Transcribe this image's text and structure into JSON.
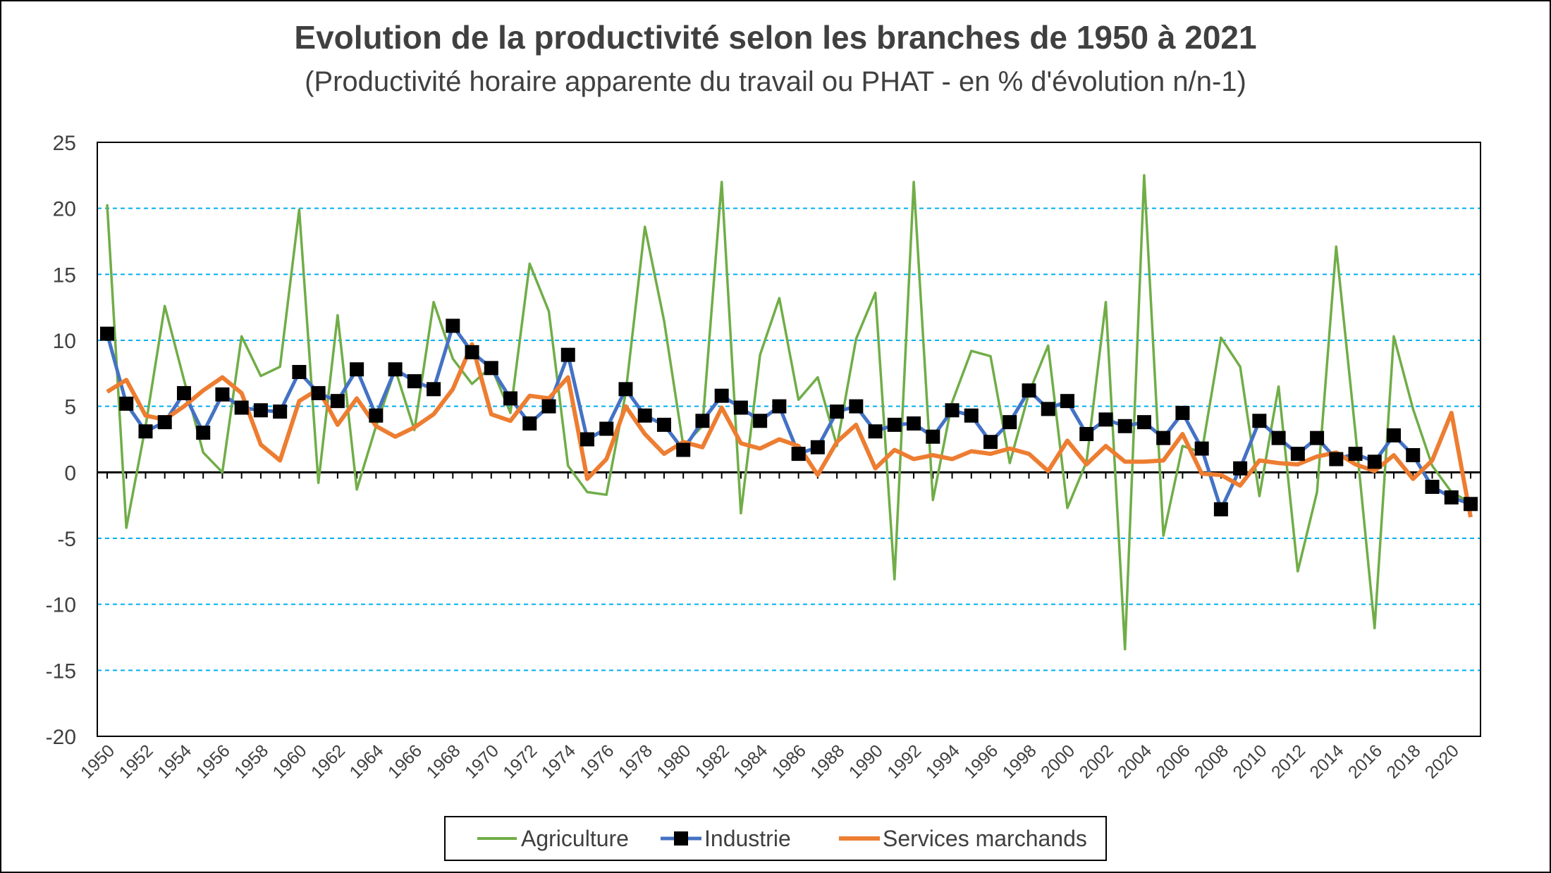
{
  "chart_data": {
    "type": "line",
    "title": "Evolution de la productivité selon les branches de 1950 à 2021",
    "subtitle": "(Productivité horaire apparente du travail ou PHAT - en % d'évolution n/n-1)",
    "x": [
      1950,
      1951,
      1952,
      1953,
      1954,
      1955,
      1956,
      1957,
      1958,
      1959,
      1960,
      1961,
      1962,
      1963,
      1964,
      1965,
      1966,
      1967,
      1968,
      1969,
      1970,
      1971,
      1972,
      1973,
      1974,
      1975,
      1976,
      1977,
      1978,
      1979,
      1980,
      1981,
      1982,
      1983,
      1984,
      1985,
      1986,
      1987,
      1988,
      1989,
      1990,
      1991,
      1992,
      1993,
      1994,
      1995,
      1996,
      1997,
      1998,
      1999,
      2000,
      2001,
      2002,
      2003,
      2004,
      2005,
      2006,
      2007,
      2008,
      2009,
      2010,
      2011,
      2012,
      2013,
      2014,
      2015,
      2016,
      2017,
      2018,
      2019,
      2020,
      2021
    ],
    "x_tick_labels": [
      "1950",
      "1952",
      "1954",
      "1956",
      "1958",
      "1960",
      "1962",
      "1964",
      "1966",
      "1968",
      "1970",
      "1972",
      "1974",
      "1976",
      "1978",
      "1980",
      "1982",
      "1984",
      "1986",
      "1988",
      "1990",
      "1992",
      "1994",
      "1996",
      "1998",
      "2000",
      "2002",
      "2004",
      "2006",
      "2008",
      "2010",
      "2012",
      "2014",
      "2016",
      "2018",
      "2020"
    ],
    "y_ticks": [
      "25",
      "20",
      "15",
      "10",
      "5",
      "0",
      "-5",
      "-10",
      "-15",
      "-20"
    ],
    "ylim": [
      -20,
      25
    ],
    "grid": "horizontal-dashed",
    "legend_position": "bottom",
    "series": [
      {
        "name": "Agriculture",
        "color": "#70AD47",
        "marker": "none",
        "values": [
          20.3,
          -4.2,
          3.5,
          12.6,
          7.0,
          1.5,
          0.0,
          10.3,
          7.3,
          8.0,
          19.9,
          -0.8,
          11.9,
          -1.3,
          3.5,
          7.8,
          3.2,
          12.9,
          8.6,
          6.7,
          8.0,
          4.5,
          15.8,
          12.2,
          0.5,
          -1.5,
          -1.7,
          6.0,
          18.6,
          11.5,
          2.0,
          3.5,
          22.0,
          -3.1,
          8.9,
          13.2,
          5.5,
          7.2,
          2.0,
          10.1,
          13.6,
          -8.1,
          22.0,
          -2.1,
          5.3,
          9.2,
          8.8,
          0.7,
          6.0,
          9.6,
          -2.7,
          0.8,
          12.9,
          -13.4,
          22.5,
          -4.8,
          2.0,
          1.5,
          10.2,
          8.0,
          -1.8,
          6.5,
          -7.5,
          -1.5,
          17.1,
          3.0,
          -11.8,
          10.3,
          4.8,
          0.5,
          -1.5,
          -2.3
        ]
      },
      {
        "name": "Industrie",
        "color": "#4472C4",
        "marker": "square",
        "values": [
          10.5,
          5.2,
          3.1,
          3.8,
          6.0,
          3.0,
          5.9,
          4.9,
          4.7,
          4.6,
          7.6,
          6.0,
          5.4,
          7.8,
          4.3,
          7.8,
          6.9,
          6.3,
          11.1,
          9.1,
          7.9,
          5.6,
          3.7,
          5.0,
          8.9,
          2.5,
          3.3,
          6.3,
          4.3,
          3.6,
          1.7,
          3.9,
          5.8,
          4.9,
          3.9,
          5.0,
          1.4,
          1.9,
          4.6,
          5.0,
          3.1,
          3.6,
          3.7,
          2.7,
          4.7,
          4.3,
          2.3,
          3.8,
          6.2,
          4.8,
          5.4,
          2.9,
          4.0,
          3.5,
          3.8,
          2.6,
          4.5,
          1.8,
          -2.8,
          0.3,
          3.9,
          2.6,
          1.4,
          2.6,
          1.0,
          1.4,
          0.8,
          2.8,
          1.3,
          -1.1,
          -1.9,
          -2.4
        ]
      },
      {
        "name": "Services marchands",
        "color": "#ED7D31",
        "marker": "none",
        "values": [
          6.1,
          7.0,
          4.3,
          4.0,
          5.0,
          6.2,
          7.2,
          6.0,
          2.1,
          0.9,
          5.4,
          6.3,
          3.6,
          5.6,
          3.5,
          2.7,
          3.4,
          4.4,
          6.3,
          9.7,
          4.4,
          3.9,
          5.8,
          5.6,
          7.2,
          -0.5,
          1.0,
          5.0,
          2.9,
          1.4,
          2.3,
          1.9,
          4.9,
          2.2,
          1.8,
          2.5,
          2.0,
          -0.2,
          2.3,
          3.6,
          0.3,
          1.7,
          1.0,
          1.3,
          1.0,
          1.6,
          1.4,
          1.8,
          1.4,
          0.1,
          2.4,
          0.6,
          2.0,
          0.8,
          0.8,
          0.9,
          2.9,
          -0.1,
          -0.2,
          -1.0,
          0.9,
          0.7,
          0.6,
          1.2,
          1.5,
          0.6,
          0.1,
          1.3,
          -0.5,
          0.9,
          4.5,
          -3.4
        ]
      }
    ]
  }
}
